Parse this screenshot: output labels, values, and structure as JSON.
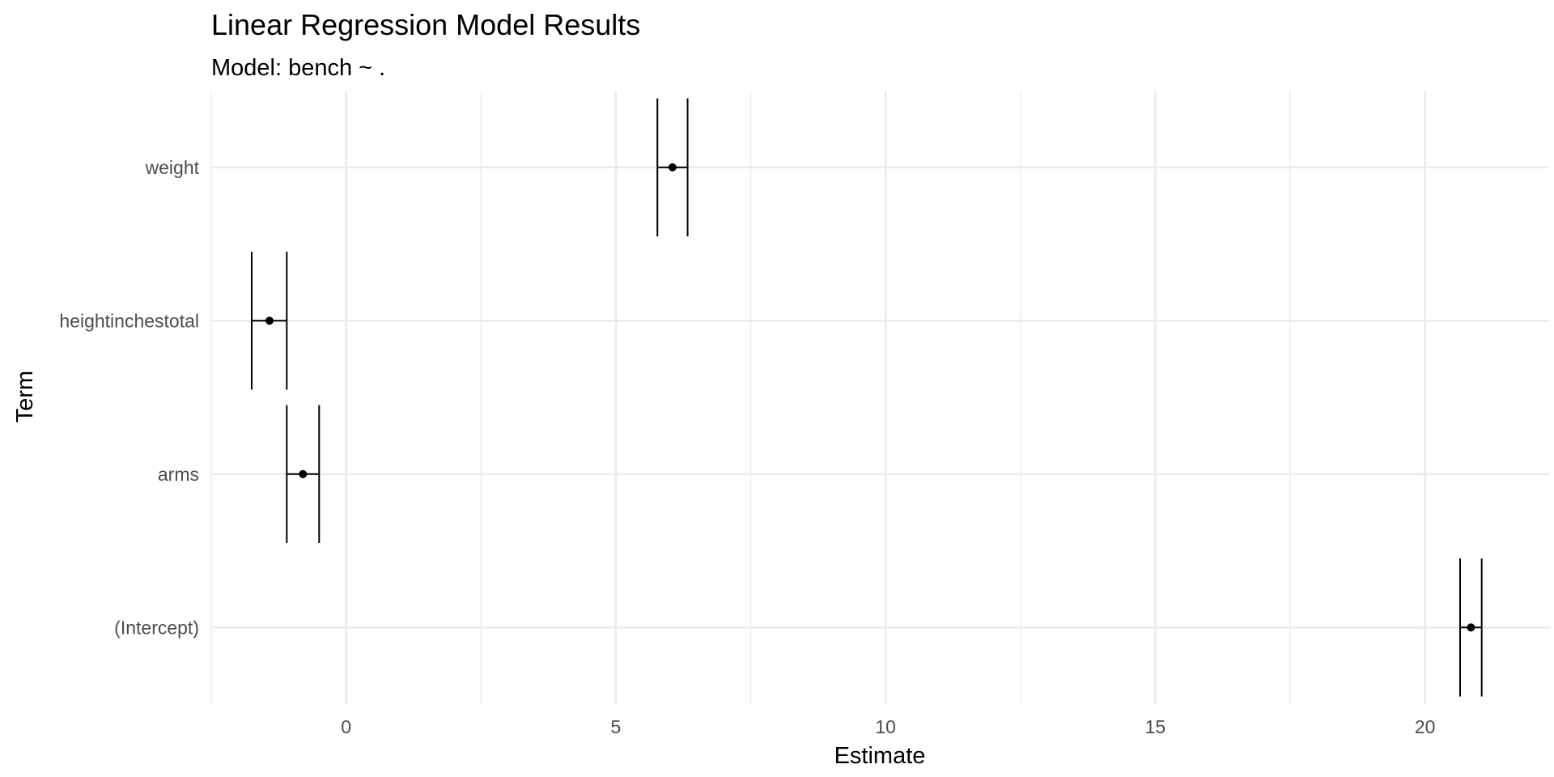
{
  "chart_data": {
    "type": "scatter",
    "title": "Linear Regression Model Results",
    "subtitle": "Model: bench ~ .",
    "xlabel": "Estimate",
    "ylabel": "Term",
    "xlim": [
      -2.5,
      22.3
    ],
    "x_ticks": [
      0,
      5,
      10,
      15,
      20
    ],
    "x_tick_labels": [
      "0",
      "5",
      "10",
      "15",
      "20"
    ],
    "x_minor_ticks": [
      -2.5,
      2.5,
      7.5,
      12.5,
      17.5
    ],
    "categories": [
      "(Intercept)",
      "arms",
      "heightinchestotal",
      "weight"
    ],
    "grid": true,
    "legend": "none",
    "series": [
      {
        "terms": [
          "(Intercept)",
          "arms",
          "heightinchestotal",
          "weight"
        ],
        "estimate": [
          20.85,
          -0.8,
          -1.42,
          6.05
        ],
        "conf_low": [
          20.65,
          -1.1,
          -1.75,
          5.77
        ],
        "conf_high": [
          21.05,
          -0.5,
          -1.1,
          6.33
        ]
      }
    ]
  }
}
